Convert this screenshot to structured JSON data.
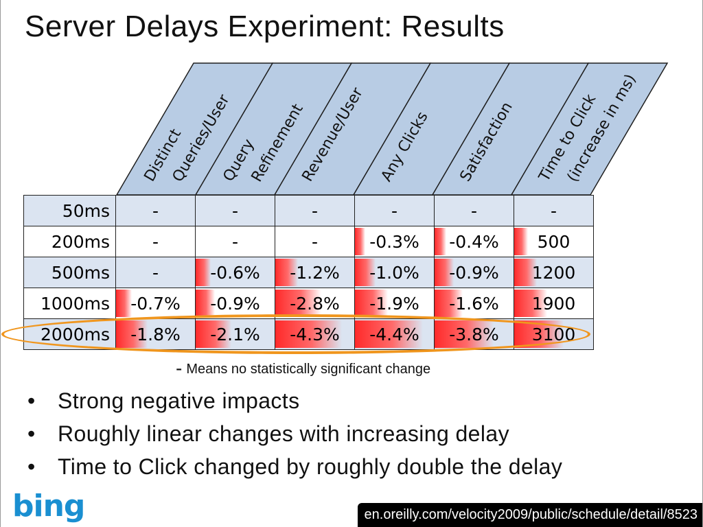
{
  "title": "Server Delays Experiment: Results",
  "columns": [
    {
      "line1": "Distinct",
      "line2": "Queries/User"
    },
    {
      "line1": "Query",
      "line2": "Refinement"
    },
    {
      "line1": "Revenue/User",
      "line2": ""
    },
    {
      "line1": "Any Clicks",
      "line2": ""
    },
    {
      "line1": "Satisfaction",
      "line2": ""
    },
    {
      "line1": "Time to Click",
      "line2": "(increase in ms)"
    }
  ],
  "rows": [
    {
      "label": "50ms",
      "cells": [
        "-",
        "-",
        "-",
        "-",
        "-",
        "-"
      ],
      "heat": [
        0,
        0,
        0,
        0,
        0,
        0
      ]
    },
    {
      "label": "200ms",
      "cells": [
        "-",
        "-",
        "-",
        "-0.3%",
        "-0.4%",
        "500"
      ],
      "heat": [
        0,
        0,
        0,
        0.3,
        0.4,
        0.5
      ]
    },
    {
      "label": "500ms",
      "cells": [
        "-",
        "-0.6%",
        "-1.2%",
        "-1.0%",
        "-0.9%",
        "1200"
      ],
      "heat": [
        0,
        0.6,
        1.2,
        1.0,
        0.9,
        1.2
      ]
    },
    {
      "label": "1000ms",
      "cells": [
        "-0.7%",
        "-0.9%",
        "-2.8%",
        "-1.9%",
        "-1.6%",
        "1900"
      ],
      "heat": [
        0.7,
        0.9,
        2.8,
        1.9,
        1.6,
        1.9
      ]
    },
    {
      "label": "2000ms",
      "cells": [
        "-1.8%",
        "-2.1%",
        "-4.3%",
        "-4.4%",
        "-3.8%",
        "3100"
      ],
      "heat": [
        1.8,
        2.1,
        4.3,
        4.4,
        3.8,
        3.1
      ]
    }
  ],
  "highlighted_row": "2000ms",
  "footnote": {
    "dash": "-",
    "text": "Means no statistically significant change"
  },
  "bullets": [
    "Strong negative impacts",
    "Roughly linear changes with increasing delay",
    "Time to Click changed by roughly double the delay"
  ],
  "logo": "bing",
  "source_url": "en.oreilly.com/velocity2009/public/schedule/detail/8523",
  "colors": {
    "header_fill": "#b8cce4",
    "row_band": "#dbe4f1",
    "heat": "#ff2a2a",
    "highlight_ring": "#f0961e",
    "logo": "#1a8fd1"
  }
}
